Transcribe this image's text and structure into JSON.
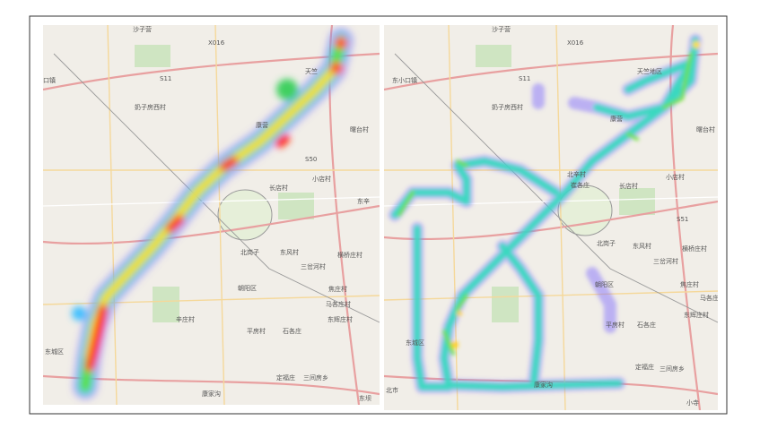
{
  "maps": [
    {
      "labels": [
        {
          "text": "沙子营"
        },
        {
          "text": "X016"
        },
        {
          "text": "口镇"
        },
        {
          "text": "S11"
        },
        {
          "text": "奶子房西村"
        },
        {
          "text": "天竺"
        },
        {
          "text": "康营"
        },
        {
          "text": "曙台村"
        },
        {
          "text": "S50"
        },
        {
          "text": "长店村"
        },
        {
          "text": "小店村"
        },
        {
          "text": "东辛"
        },
        {
          "text": "北岗子"
        },
        {
          "text": "东风村"
        },
        {
          "text": "横桥庄村"
        },
        {
          "text": "三岔河村"
        },
        {
          "text": "朝阳区"
        },
        {
          "text": "焦庄村"
        },
        {
          "text": "马各庄村"
        },
        {
          "text": "辛庄村"
        },
        {
          "text": "东辉庄村"
        },
        {
          "text": "平房村"
        },
        {
          "text": "石各庄"
        },
        {
          "text": "东城区"
        },
        {
          "text": "定福庄"
        },
        {
          "text": "三间房乡"
        },
        {
          "text": "康家沟"
        },
        {
          "text": "东坝"
        }
      ]
    },
    {
      "labels": [
        {
          "text": "沙子营"
        },
        {
          "text": "X016"
        },
        {
          "text": "东小口镇"
        },
        {
          "text": "S11"
        },
        {
          "text": "奶子房西村"
        },
        {
          "text": "天竺地区"
        },
        {
          "text": "康营"
        },
        {
          "text": "曙台村"
        },
        {
          "text": "北辛村"
        },
        {
          "text": "崔各庄"
        },
        {
          "text": "长店村"
        },
        {
          "text": "小店村"
        },
        {
          "text": "S51"
        },
        {
          "text": "北岗子"
        },
        {
          "text": "东风村"
        },
        {
          "text": "横桥庄村"
        },
        {
          "text": "三岔河村"
        },
        {
          "text": "朝阳区"
        },
        {
          "text": "焦庄村"
        },
        {
          "text": "马各庄"
        },
        {
          "text": "东辉庄村"
        },
        {
          "text": "平房村"
        },
        {
          "text": "石各庄"
        },
        {
          "text": "东城区"
        },
        {
          "text": "定福庄"
        },
        {
          "text": "三间房乡"
        },
        {
          "text": "康家沟"
        },
        {
          "text": "北市"
        },
        {
          "text": "小寺"
        }
      ]
    }
  ]
}
